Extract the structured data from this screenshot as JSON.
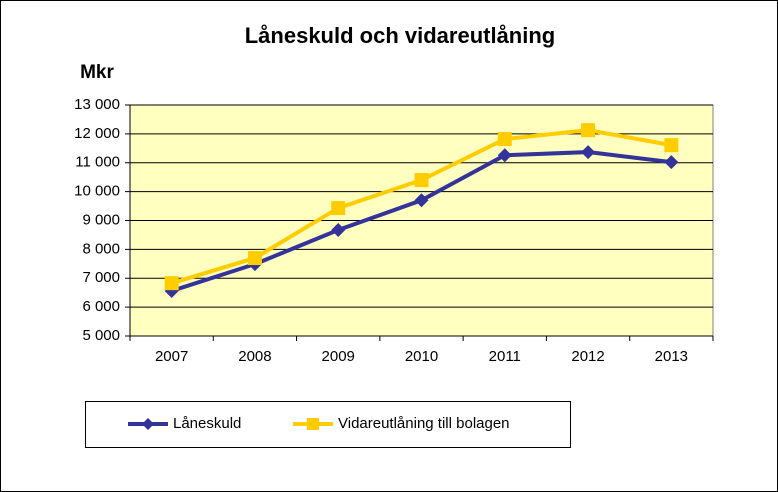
{
  "chart_data": {
    "type": "line",
    "title": "Låneskuld och vidareutlåning",
    "y_label": "Mkr",
    "categories": [
      "2007",
      "2008",
      "2009",
      "2010",
      "2011",
      "2012",
      "2013"
    ],
    "series": [
      {
        "name": "Låneskuld",
        "color": "#333399",
        "marker": "diamond",
        "values": [
          6560,
          7490,
          8670,
          9700,
          11260,
          11370,
          11020
        ]
      },
      {
        "name": "Vidareutlåning till bolagen",
        "color": "#ffcc00",
        "marker": "square",
        "values": [
          6830,
          7700,
          9430,
          10400,
          11820,
          12130,
          11610
        ]
      }
    ],
    "ylim": [
      5000,
      13000
    ],
    "yticks": [
      {
        "value": 5000,
        "label": "5 000"
      },
      {
        "value": 6000,
        "label": "6 000"
      },
      {
        "value": 7000,
        "label": "7 000"
      },
      {
        "value": 8000,
        "label": "8 000"
      },
      {
        "value": 9000,
        "label": "9 000"
      },
      {
        "value": 10000,
        "label": "10 000"
      },
      {
        "value": 11000,
        "label": "11 000"
      },
      {
        "value": 12000,
        "label": "12 000"
      },
      {
        "value": 13000,
        "label": "13 000"
      }
    ],
    "grid": true,
    "plot_background": "#ffffc0",
    "legend": "bottom"
  }
}
